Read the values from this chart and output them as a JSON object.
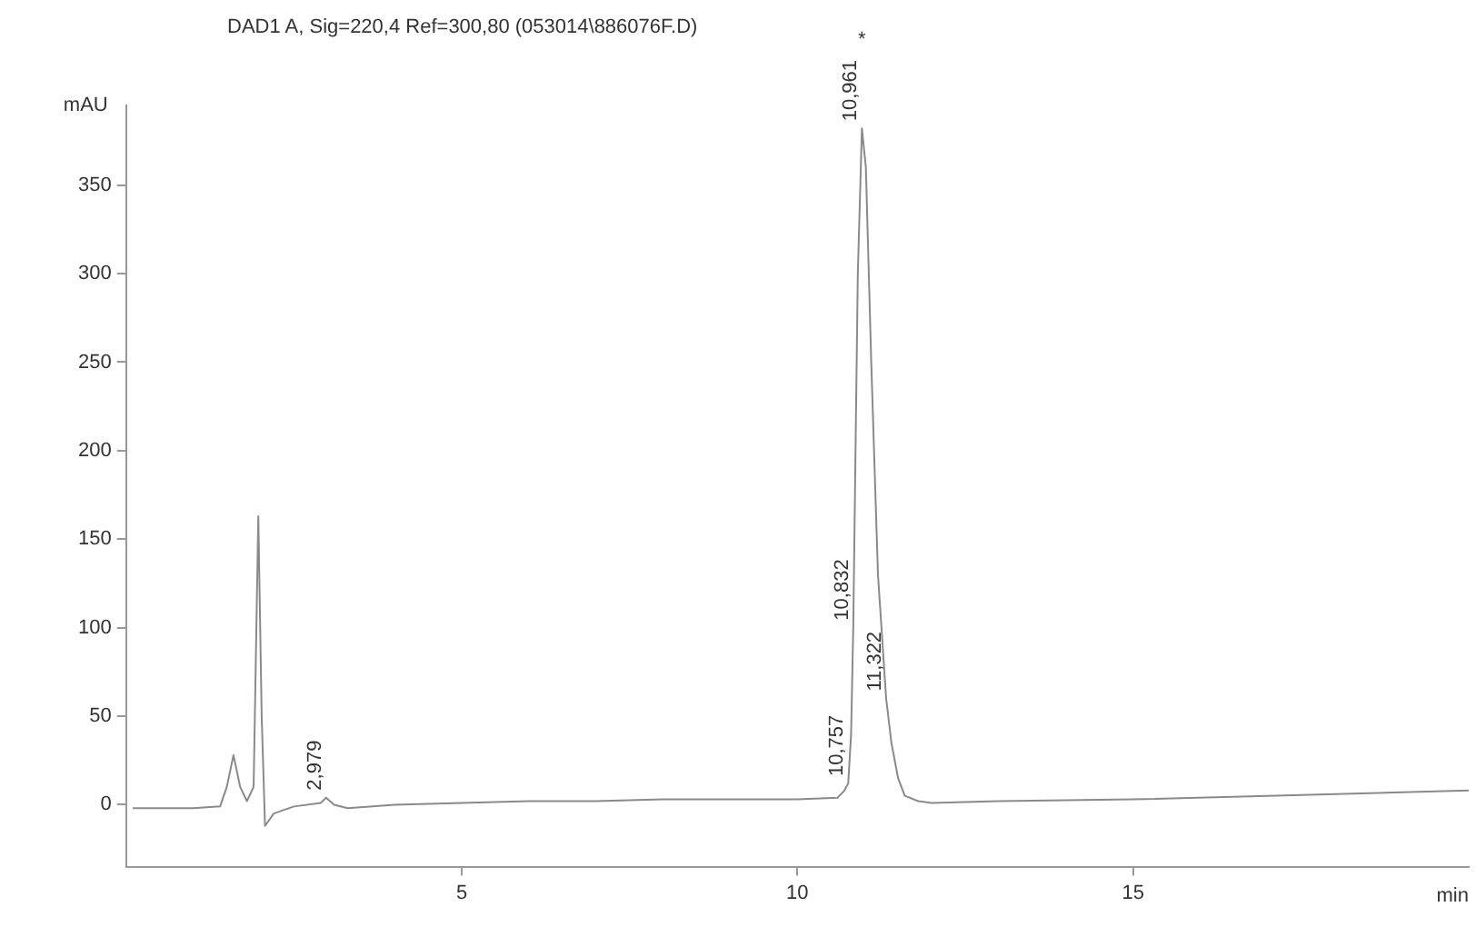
{
  "chart_data": {
    "type": "line",
    "title": "DAD1 A, Sig=220,4 Ref=300,80 (053014\\886076F.D)",
    "xlabel": "min",
    "ylabel": "mAU",
    "x": [
      0.1,
      1.0,
      1.4,
      1.5,
      1.6,
      1.7,
      1.8,
      1.9,
      1.97,
      2.02,
      2.07,
      2.2,
      2.5,
      2.9,
      2.98,
      3.1,
      3.3,
      4,
      5,
      6,
      7,
      8,
      9,
      10,
      10.6,
      10.7,
      10.757,
      10.8,
      10.832,
      10.9,
      10.961,
      11.02,
      11.1,
      11.2,
      11.322,
      11.4,
      11.5,
      11.6,
      11.8,
      12,
      13,
      15,
      17,
      19,
      20
    ],
    "series": [
      {
        "color": "#8a8a8a",
        "values": [
          -2,
          -2,
          -1,
          10,
          28,
          10,
          2,
          10,
          163,
          50,
          -12,
          -5,
          -1,
          1,
          4,
          0,
          -2,
          0,
          1,
          2,
          2,
          3,
          3,
          3,
          4,
          8,
          12,
          40,
          100,
          300,
          382,
          360,
          250,
          130,
          60,
          35,
          15,
          5,
          2,
          1,
          2,
          3,
          5,
          7,
          8
        ]
      }
    ],
    "xlim": [
      0,
      20
    ],
    "ylim": [
      -35,
      395
    ],
    "xticks": [
      5,
      10,
      15
    ],
    "yticks": [
      0,
      50,
      100,
      150,
      200,
      250,
      300,
      350
    ],
    "grid": false,
    "legend": false,
    "marker": "none",
    "line_style": "solid",
    "annotations": [
      {
        "text": "2,979",
        "x": 2.979,
        "y": 4
      },
      {
        "text": "10,757",
        "x": 10.757,
        "y": 12
      },
      {
        "text": "10,832",
        "x": 10.832,
        "y": 100
      },
      {
        "text": "10,961",
        "x": 10.961,
        "y": 382
      },
      {
        "text": "11,322",
        "x": 11.322,
        "y": 60
      },
      "*"
    ]
  }
}
